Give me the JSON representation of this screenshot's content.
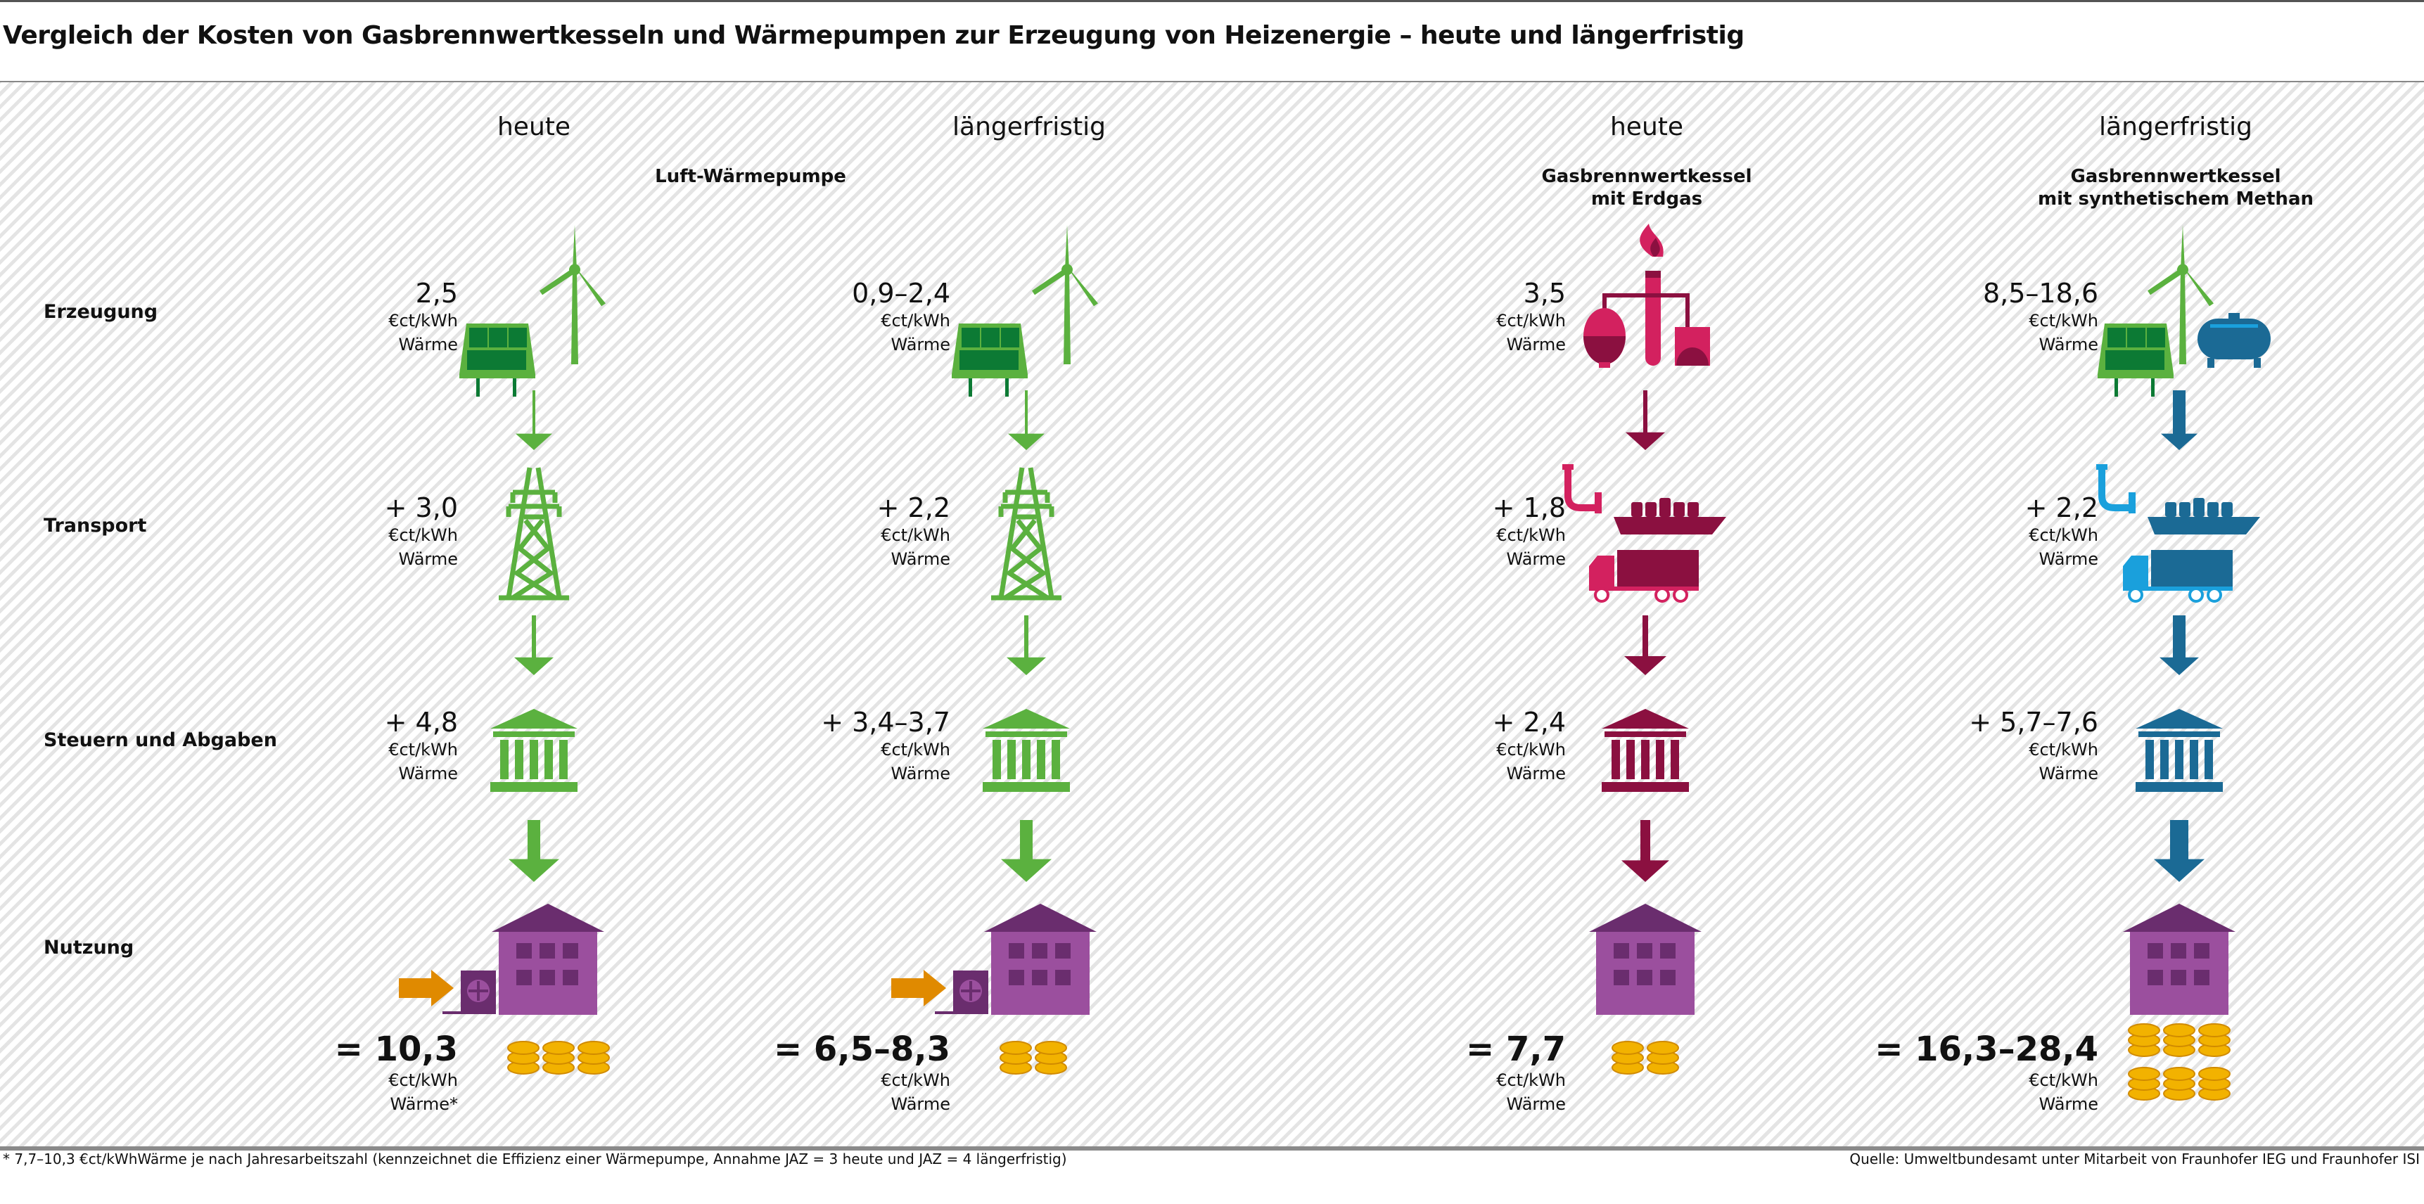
{
  "title": "Vergleich der Kosten von Gasbrennwertkesseln und Wärmepumpen zur Erzeugung von Heizenergie – heute und längerfristig",
  "rows": {
    "erzeugung": "Erzeugung",
    "transport": "Transport",
    "steuern": "Steuern und Abgaben",
    "nutzung": "Nutzung"
  },
  "groups": {
    "wp": "Luft-Wärmepumpe",
    "gas_heute": [
      "Gasbrennwertkessel",
      "mit Erdgas"
    ],
    "gas_lang": [
      "Gasbrennwertkessel",
      "mit synthetischem Methan"
    ]
  },
  "unit": "€ct/kWh",
  "waerme": "Wärme",
  "columns": [
    {
      "period": "heute",
      "system": "Luft-Wärmepumpe",
      "erzeugung": "2,5",
      "transport": "+ 3,0",
      "steuern": "+ 4,8",
      "total": "= 10,3",
      "total_waerme": "Wärme*",
      "color": "#5bb13f",
      "coin_stacks": 3
    },
    {
      "period": "längerfristig",
      "system": "Luft-Wärmepumpe",
      "erzeugung": "0,9–2,4",
      "transport": "+ 2,2",
      "steuern": "+ 3,4–3,7",
      "total": "= 6,5–8,3",
      "total_waerme": "Wärme",
      "color": "#5bb13f",
      "coin_stacks": 2
    },
    {
      "period": "heute",
      "system": "Gasbrennwertkessel mit Erdgas",
      "erzeugung": "3,5",
      "transport": "+ 1,8",
      "steuern": "+ 2,4",
      "total": "= 7,7",
      "total_waerme": "Wärme",
      "color": "#8b1040",
      "coin_stacks": 2
    },
    {
      "period": "längerfristig",
      "system": "Gasbrennwertkessel mit synthetischem Methan",
      "erzeugung": "8,5–18,6",
      "transport": "+ 2,2",
      "steuern": "+ 5,7–7,6",
      "total": "= 16,3–28,4",
      "total_waerme": "Wärme",
      "color": "#1b6a95",
      "coin_stacks": 6
    }
  ],
  "colors": {
    "green": "#5bb13f",
    "dark_green": "#0c7a34",
    "pink": "#d3215f",
    "maroon": "#8b1040",
    "blue": "#1b6a95",
    "light_blue": "#1aa0dc",
    "purple": "#9b4f9e",
    "dark_purple": "#6a2d6e",
    "orange": "#e08a00",
    "gold": "#f2b200"
  },
  "footnote": "* 7,7–10,3 €ct/kWhWärme je nach Jahresarbeitszahl (kennzeichnet die Effizienz einer Wärmepumpe, Annahme JAZ = 3 heute und JAZ = 4 längerfristig)",
  "source": "Quelle: Umweltbundesamt unter Mitarbeit von Fraunhofer IEG und Fraunhofer ISI"
}
